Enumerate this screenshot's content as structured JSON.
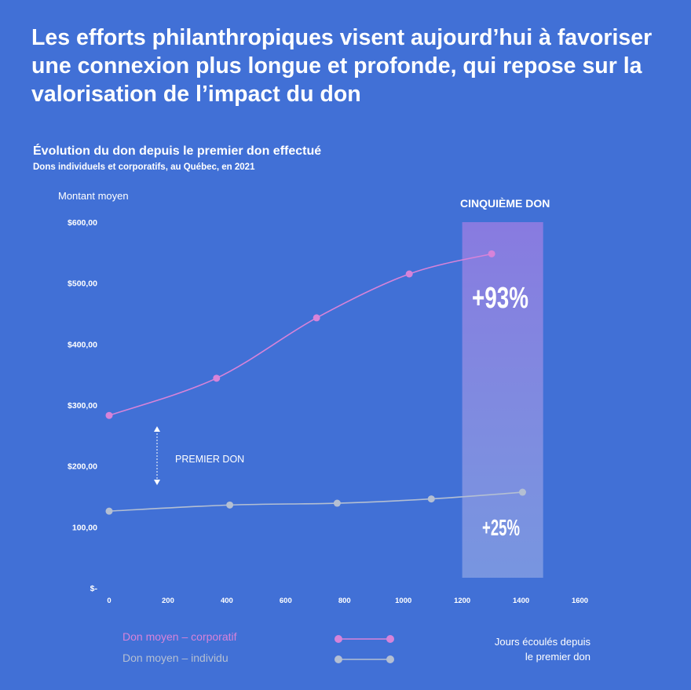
{
  "headline": "Les efforts philanthropiques visent aujourd’hui à favoriser une connexion plus longue et profonde, qui repose sur la valorisation de l’impact du don",
  "chart_data": {
    "type": "line",
    "title": "Évolution du don depuis le premier don effectué",
    "subtitle": "Dons individuels et corporatifs, au Québec, en 2021",
    "ylabel": "Montant moyen",
    "xlabel": "Jours écoulés depuis le premier don",
    "xlabel_lines": [
      "Jours écoulés depuis",
      "le premier don"
    ],
    "xlim": [
      0,
      1600
    ],
    "ylim": [
      0,
      600
    ],
    "x_ticks": [
      0,
      200,
      400,
      600,
      800,
      1000,
      1200,
      1400,
      1600
    ],
    "x_tick_labels": [
      "0",
      "200",
      "400",
      "600",
      "800",
      "1000",
      "1200",
      "1400",
      "1600"
    ],
    "y_ticks": [
      0,
      100,
      200,
      300,
      400,
      500,
      600
    ],
    "y_tick_labels": [
      "$-",
      "100,00",
      "$200,00",
      "$300,00",
      "$400,00",
      "$500,00",
      "$600,00"
    ],
    "grid": false,
    "legend_placement": "bottom",
    "series": [
      {
        "name": "Don moyen – corporatif",
        "color": "#d783d9",
        "points": [
          [
            0,
            283
          ],
          [
            365,
            344
          ],
          [
            705,
            443
          ],
          [
            1020,
            515
          ],
          [
            1300,
            548
          ]
        ]
      },
      {
        "name": "Don moyen – individu",
        "color": "#b4bfd2",
        "points": [
          [
            0,
            126
          ],
          [
            410,
            136
          ],
          [
            775,
            139
          ],
          [
            1095,
            146
          ],
          [
            1405,
            157
          ]
        ]
      }
    ],
    "highlight_band": {
      "x_range": [
        1200,
        1475
      ],
      "label": "CINQUIÈME DON",
      "color": "#a593e6"
    },
    "annotations": {
      "corp_change": "+93%",
      "ind_change": "+25%",
      "first_gift": "PREMIER DON"
    }
  }
}
